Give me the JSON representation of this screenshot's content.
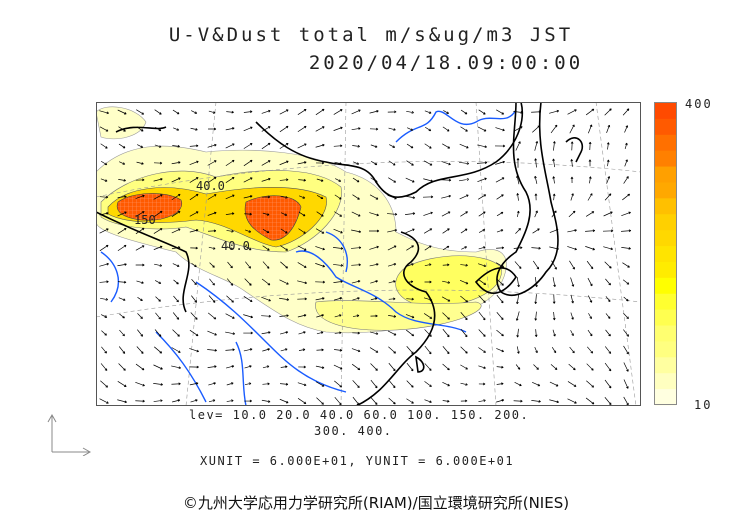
{
  "title": {
    "line1": "U-V&Dust total m/s&ug/m3 JST",
    "line2": "2020/04/18.09:00:00"
  },
  "map": {
    "contour_labels": [
      "40.0",
      "150",
      "40.0"
    ],
    "colors": {
      "coast": "#000000",
      "river": "#1a5cff",
      "grid": "#888888",
      "arrow": "#000000"
    }
  },
  "colorbar": {
    "max_label": "400",
    "min_label": "10",
    "colors": [
      "#ff4a00",
      "#ff5a00",
      "#ff7000",
      "#ff8000",
      "#ffa000",
      "#ffa800",
      "#ffc000",
      "#ffd000",
      "#ffd800",
      "#ffe400",
      "#ffec00",
      "#ffff00",
      "#ffff30",
      "#ffff50",
      "#ffff70",
      "#ffff80",
      "#ffffa0",
      "#ffffc0",
      "#ffffe0"
    ]
  },
  "levels": {
    "line1": "lev= 10.0 20.0 40.0 60.0 100. 150. 200.",
    "line2": "300. 400."
  },
  "units": "XUNIT = 6.000E+01, YUNIT = 6.000E+01",
  "credit": "©九州大学応用力学研究所(RIAM)/国立環境研究所(NIES)"
}
